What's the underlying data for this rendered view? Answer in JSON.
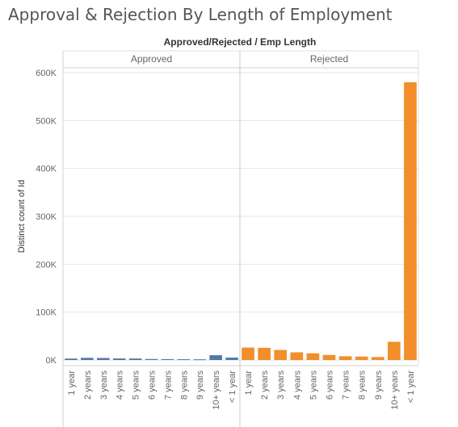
{
  "chart_data": {
    "type": "bar",
    "title": "Approval & Rejection By Length of Employment",
    "header": "Approved/Rejected  /  Emp Length",
    "ylabel": "Distinct count of Id",
    "ylim": [
      0,
      600000
    ],
    "yticks": [
      0,
      100000,
      200000,
      300000,
      400000,
      500000,
      600000
    ],
    "ytick_labels": [
      "0K",
      "100K",
      "200K",
      "300K",
      "400K",
      "500K",
      "600K"
    ],
    "grid": true,
    "categories": [
      "1 year",
      "2 years",
      "3 years",
      "4 years",
      "5 years",
      "6 years",
      "7 years",
      "8 years",
      "9 years",
      "10+ years",
      "< 1 year"
    ],
    "panels": [
      {
        "name": "Approved",
        "color": "#4e79a7",
        "values": [
          3000,
          4500,
          4200,
          3200,
          3100,
          2100,
          1800,
          1600,
          1400,
          10000,
          5000
        ]
      },
      {
        "name": "Rejected",
        "color": "#f28e2b",
        "values": [
          26000,
          25500,
          21000,
          16000,
          14000,
          10500,
          7800,
          7200,
          6200,
          38000,
          580000
        ]
      }
    ]
  }
}
